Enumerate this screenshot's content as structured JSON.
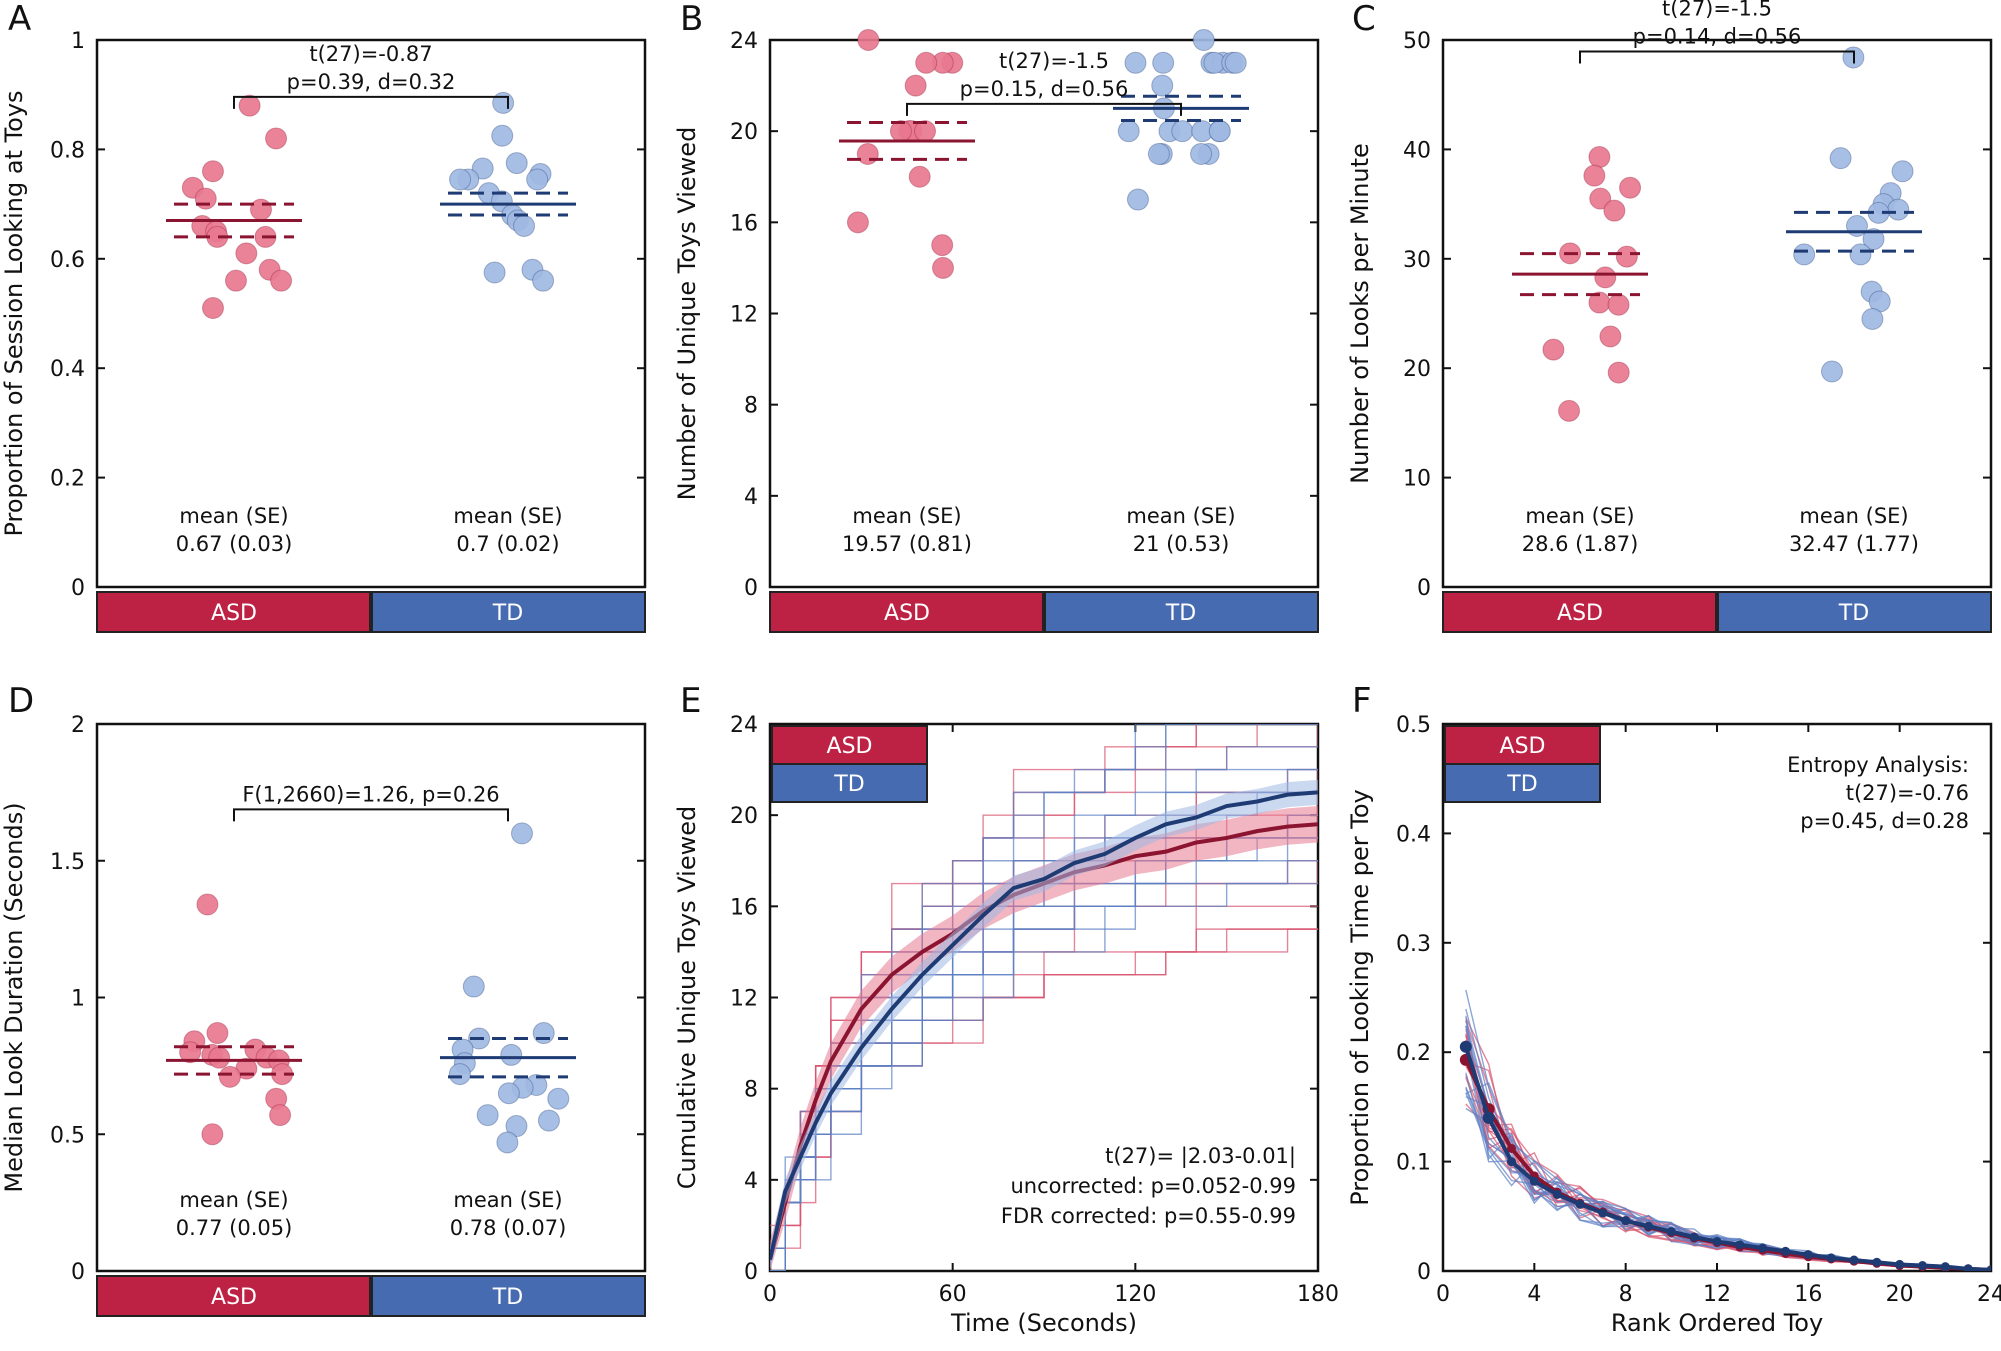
{
  "colors": {
    "asd": "#bd2245",
    "td": "#466bb0",
    "asd_dark": "#8b1530",
    "td_dark": "#1f3b73",
    "asd_light": "#e8788f",
    "td_light": "#9fb8e3"
  },
  "chart_data": [
    {
      "panel": "A",
      "type": "scatter",
      "ylabel": "Proportion of Session Looking at Toys",
      "ylim": [
        0,
        1
      ],
      "yticks": [
        0,
        0.2,
        0.4,
        0.6,
        0.8,
        1
      ],
      "ytick_labels": [
        "0",
        "0.2",
        "0.4",
        "0.6",
        "0.8",
        "1"
      ],
      "groups": [
        "ASD",
        "TD"
      ],
      "stat": [
        "t(27)=-0.87",
        "p=0.39, d=0.32"
      ],
      "series": [
        {
          "name": "ASD",
          "mean": 0.67,
          "se": 0.03,
          "summary": "0.67 (0.03)",
          "values": [
            0.88,
            0.82,
            0.76,
            0.73,
            0.71,
            0.69,
            0.66,
            0.65,
            0.64,
            0.64,
            0.61,
            0.58,
            0.56,
            0.56,
            0.51
          ]
        },
        {
          "name": "TD",
          "mean": 0.7,
          "se": 0.02,
          "summary": "0.7 (0.02)",
          "values": [
            0.885,
            0.825,
            0.775,
            0.765,
            0.755,
            0.745,
            0.745,
            0.745,
            0.72,
            0.705,
            0.68,
            0.67,
            0.66,
            0.58,
            0.575,
            0.56
          ]
        }
      ],
      "mean_label": "mean (SE)"
    },
    {
      "panel": "B",
      "type": "scatter",
      "ylabel": "Number of Unique Toys Viewed",
      "ylim": [
        0,
        24
      ],
      "yticks": [
        0,
        4,
        8,
        12,
        16,
        20,
        24
      ],
      "ytick_labels": [
        "0",
        "4",
        "8",
        "12",
        "16",
        "20",
        "24"
      ],
      "groups": [
        "ASD",
        "TD"
      ],
      "stat": [
        "t(27)=-1.5",
        "p=0.15, d=0.56"
      ],
      "series": [
        {
          "name": "ASD",
          "mean": 19.57,
          "se": 0.81,
          "summary": "19.57 (0.81)",
          "values": [
            24,
            23,
            23,
            23,
            22,
            20,
            20,
            20,
            20,
            19,
            18,
            16,
            15,
            14
          ]
        },
        {
          "name": "TD",
          "mean": 21,
          "se": 0.53,
          "summary": "21 (0.53)",
          "values": [
            24,
            23,
            23,
            23,
            23,
            23,
            23,
            23,
            22,
            21,
            20,
            20,
            20,
            20,
            20,
            20,
            19,
            19,
            19,
            19,
            17
          ]
        }
      ],
      "mean_label": "mean (SE)"
    },
    {
      "panel": "C",
      "type": "scatter",
      "ylabel": "Number of Looks per Minute",
      "ylim": [
        0,
        50
      ],
      "yticks": [
        0,
        10,
        20,
        30,
        40,
        50
      ],
      "ytick_labels": [
        "0",
        "10",
        "20",
        "30",
        "40",
        "50"
      ],
      "groups": [
        "ASD",
        "TD"
      ],
      "stat": [
        "t(27)=-1.5",
        "p=0.14, d=0.56"
      ],
      "series": [
        {
          "name": "ASD",
          "mean": 28.6,
          "se": 1.87,
          "summary": "28.6 (1.87)",
          "values": [
            39.3,
            37.6,
            36.5,
            35.5,
            34.4,
            30.5,
            30.2,
            28.3,
            26.0,
            25.8,
            22.9,
            21.7,
            19.6,
            16.1
          ]
        },
        {
          "name": "TD",
          "mean": 32.47,
          "se": 1.77,
          "summary": "32.47 (1.77)",
          "values": [
            48.4,
            39.2,
            38.0,
            36.0,
            35.0,
            34.5,
            34.2,
            33.0,
            31.8,
            30.4,
            30.4,
            27.0,
            26.1,
            24.5,
            19.7
          ]
        }
      ],
      "mean_label": "mean (SE)"
    },
    {
      "panel": "D",
      "type": "scatter",
      "ylabel": "Median Look Duration (Seconds)",
      "ylim": [
        0,
        2
      ],
      "yticks": [
        0,
        0.5,
        1,
        1.5,
        2
      ],
      "ytick_labels": [
        "0",
        "0.5",
        "1",
        "1.5",
        "2"
      ],
      "groups": [
        "ASD",
        "TD"
      ],
      "stat": [
        "F(1,2660)=1.26, p=0.26"
      ],
      "series": [
        {
          "name": "ASD",
          "mean": 0.77,
          "se": 0.05,
          "summary": "0.77 (0.05)",
          "values": [
            1.34,
            0.87,
            0.84,
            0.81,
            0.8,
            0.79,
            0.78,
            0.78,
            0.77,
            0.74,
            0.72,
            0.71,
            0.63,
            0.57,
            0.5
          ]
        },
        {
          "name": "TD",
          "mean": 0.78,
          "se": 0.07,
          "summary": "0.78 (0.07)",
          "values": [
            1.6,
            1.04,
            0.87,
            0.85,
            0.81,
            0.79,
            0.76,
            0.72,
            0.68,
            0.67,
            0.65,
            0.63,
            0.57,
            0.55,
            0.53,
            0.47
          ]
        }
      ],
      "mean_label": "mean (SE)"
    },
    {
      "panel": "E",
      "type": "line",
      "xlabel": "Time (Seconds)",
      "ylabel": "Cumulative Unique Toys Viewed",
      "xlim": [
        0,
        180
      ],
      "ylim": [
        0,
        24
      ],
      "xticks": [
        0,
        60,
        120,
        180
      ],
      "xtick_labels": [
        "0",
        "60",
        "120",
        "180"
      ],
      "yticks": [
        0,
        4,
        8,
        12,
        16,
        20,
        24
      ],
      "ytick_labels": [
        "0",
        "4",
        "8",
        "12",
        "16",
        "20",
        "24"
      ],
      "legend": [
        "ASD",
        "TD"
      ],
      "annotation": [
        "t(27)= |2.03-0.01|",
        "uncorrected: p=0.052-0.99",
        "FDR corrected: p=0.55-0.99"
      ],
      "series": [
        {
          "name": "ASD",
          "x": [
            0,
            5,
            10,
            15,
            20,
            30,
            40,
            50,
            60,
            70,
            80,
            90,
            100,
            110,
            120,
            130,
            140,
            150,
            160,
            170,
            180
          ],
          "values": [
            0.5,
            3.0,
            5.5,
            7.5,
            9.2,
            11.5,
            13.0,
            14.0,
            14.8,
            15.8,
            16.5,
            17.0,
            17.5,
            17.8,
            18.2,
            18.4,
            18.8,
            19.0,
            19.3,
            19.5,
            19.6
          ],
          "ci": 0.8
        },
        {
          "name": "TD",
          "x": [
            0,
            5,
            10,
            15,
            20,
            30,
            40,
            50,
            60,
            70,
            80,
            90,
            100,
            110,
            120,
            130,
            140,
            150,
            160,
            170,
            180
          ],
          "values": [
            0.5,
            3.5,
            5.0,
            6.5,
            7.8,
            9.8,
            11.5,
            13.0,
            14.3,
            15.6,
            16.8,
            17.2,
            17.9,
            18.3,
            19.0,
            19.6,
            19.9,
            20.4,
            20.6,
            20.9,
            21.0
          ],
          "ci": 0.55
        }
      ]
    },
    {
      "panel": "F",
      "type": "line",
      "xlabel": "Rank Ordered Toy",
      "ylabel": "Proportion of Looking Time per Toy",
      "xlim": [
        0,
        24
      ],
      "ylim": [
        0,
        0.5
      ],
      "xticks": [
        0,
        4,
        8,
        12,
        16,
        20,
        24
      ],
      "xtick_labels": [
        "0",
        "4",
        "8",
        "12",
        "16",
        "20",
        "24"
      ],
      "yticks": [
        0,
        0.1,
        0.2,
        0.3,
        0.4,
        0.5
      ],
      "ytick_labels": [
        "0",
        "0.1",
        "0.2",
        "0.3",
        "0.4",
        "0.5"
      ],
      "legend": [
        "ASD",
        "TD"
      ],
      "annotation": [
        "Entropy Analysis:",
        "t(27)=-0.76",
        "p=0.45, d=0.28"
      ],
      "series": [
        {
          "name": "ASD",
          "x": [
            1,
            2,
            3,
            4,
            5,
            6,
            7,
            8,
            9,
            10,
            11,
            12,
            13,
            14,
            15,
            16,
            17,
            18,
            19,
            20,
            21,
            22,
            23,
            24
          ],
          "values": [
            0.193,
            0.148,
            0.112,
            0.087,
            0.072,
            0.062,
            0.054,
            0.046,
            0.04,
            0.035,
            0.03,
            0.026,
            0.022,
            0.019,
            0.016,
            0.013,
            0.011,
            0.009,
            0.007,
            0.005,
            0.004,
            0.003,
            0.002,
            0.001
          ]
        },
        {
          "name": "TD",
          "x": [
            1,
            2,
            3,
            4,
            5,
            6,
            7,
            8,
            9,
            10,
            11,
            12,
            13,
            14,
            15,
            16,
            17,
            18,
            19,
            20,
            21,
            22,
            23,
            24
          ],
          "values": [
            0.205,
            0.14,
            0.1,
            0.082,
            0.07,
            0.061,
            0.053,
            0.046,
            0.041,
            0.036,
            0.031,
            0.027,
            0.024,
            0.021,
            0.018,
            0.015,
            0.012,
            0.01,
            0.008,
            0.006,
            0.005,
            0.004,
            0.002,
            0.001
          ]
        }
      ]
    }
  ]
}
